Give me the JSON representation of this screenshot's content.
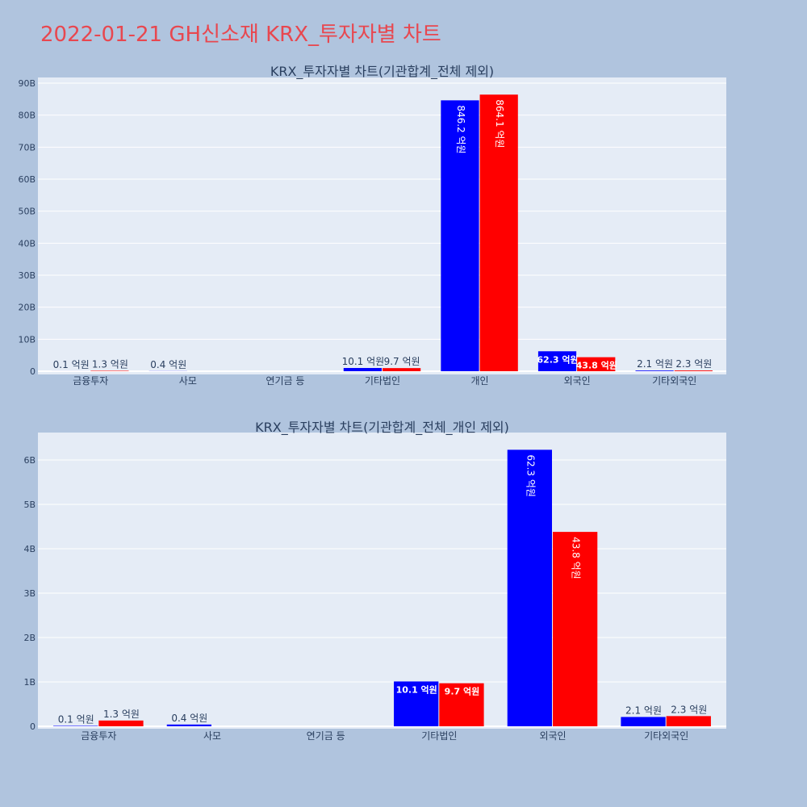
{
  "title": "2022-01-21 GH신소재 KRX_투자자별 차트",
  "colors": {
    "background": "#b0c4de",
    "plot_bg": "#e5ecf6",
    "series_a": "#0000ff",
    "series_b": "#ff0000",
    "title": "#e8474f"
  },
  "chart_data": [
    {
      "type": "bar",
      "title": "KRX_투자자별 차트(기관합계_전체 제외)",
      "categories": [
        "금융투자",
        "사모",
        "연기금 등",
        "기타법인",
        "개인",
        "외국인",
        "기타외국인"
      ],
      "series": [
        {
          "values": [
            0.01,
            0.04,
            0,
            1.01,
            84.62,
            6.23,
            0.21
          ],
          "labels": [
            "0.1 억원",
            "0.4 억원",
            "",
            "10.1 억원",
            "846.2 억원",
            "62.3 억원",
            "2.1 억원"
          ]
        },
        {
          "values": [
            0.13,
            0,
            0,
            0.97,
            86.41,
            4.38,
            0.23
          ],
          "labels": [
            "1.3 억원",
            "",
            "",
            "9.7 억원",
            "864.1 억원",
            "43.8 억원",
            "2.3 억원"
          ]
        }
      ],
      "ylim": [
        0,
        90
      ],
      "yticks": [
        0,
        10,
        20,
        30,
        40,
        50,
        60,
        70,
        80,
        90
      ],
      "ytick_labels": [
        "0",
        "10B",
        "20B",
        "30B",
        "40B",
        "50B",
        "60B",
        "70B",
        "80B",
        "90B"
      ],
      "grid": true
    },
    {
      "type": "bar",
      "title": "KRX_투자자별 차트(기관합계_전체_개인 제외)",
      "categories": [
        "금융투자",
        "사모",
        "연기금 등",
        "기타법인",
        "외국인",
        "기타외국인"
      ],
      "series": [
        {
          "values": [
            0.01,
            0.04,
            0,
            1.01,
            6.23,
            0.21
          ],
          "labels": [
            "0.1 억원",
            "0.4 억원",
            "",
            "10.1 억원",
            "62.3 억원",
            "2.1 억원"
          ]
        },
        {
          "values": [
            0.13,
            0,
            0,
            0.97,
            4.38,
            0.23
          ],
          "labels": [
            "1.3 억원",
            "",
            "",
            "9.7 억원",
            "43.8 억원",
            "2.3 억원"
          ]
        }
      ],
      "ylim": [
        0,
        6.6
      ],
      "yticks": [
        0,
        1,
        2,
        3,
        4,
        5,
        6
      ],
      "ytick_labels": [
        "0",
        "1B",
        "2B",
        "3B",
        "4B",
        "5B",
        "6B"
      ],
      "grid": true
    }
  ]
}
